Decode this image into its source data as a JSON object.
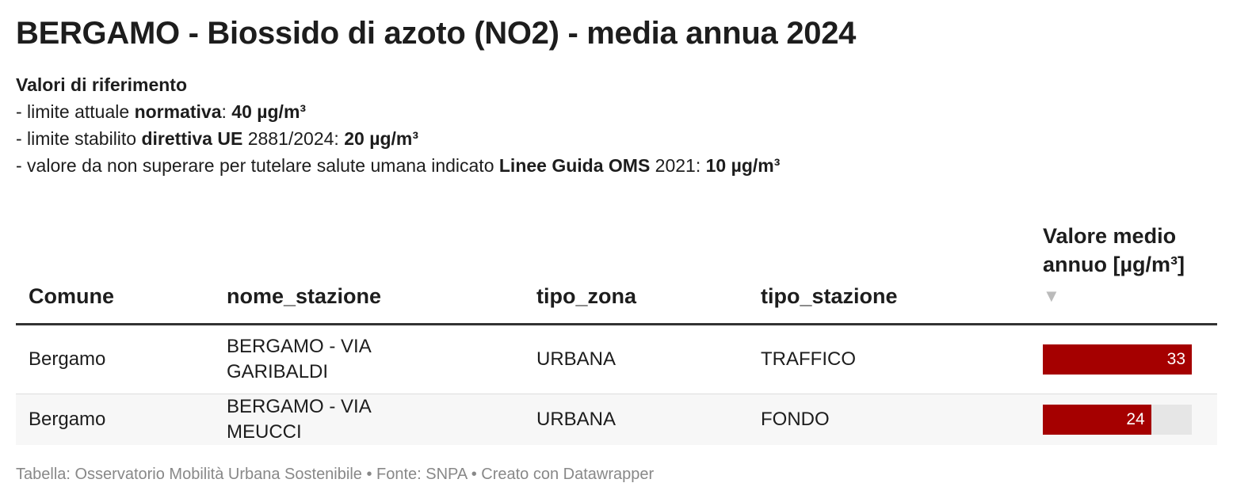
{
  "header": {
    "title": "BERGAMO - Biossido di azoto (NO2) - media annua 2024",
    "intro": [
      [
        {
          "text": "Valori di riferimento",
          "bold": true
        }
      ],
      [
        {
          "text": "- limite attuale ",
          "bold": false
        },
        {
          "text": "normativa",
          "bold": true
        },
        {
          "text": ": ",
          "bold": false
        },
        {
          "text": "40 µg/m³",
          "bold": true
        }
      ],
      [
        {
          "text": "- limite stabilito ",
          "bold": false
        },
        {
          "text": "direttiva UE",
          "bold": true
        },
        {
          "text": " 2881/2024: ",
          "bold": false
        },
        {
          "text": "20 µg/m³",
          "bold": true
        }
      ],
      [
        {
          "text": "- valore da non superare per tutelare salute umana indicato ",
          "bold": false
        },
        {
          "text": "Linee Guida OMS",
          "bold": true
        },
        {
          "text": " 2021: ",
          "bold": false
        },
        {
          "text": "10 µg/m³",
          "bold": true
        }
      ]
    ]
  },
  "table": {
    "columns": [
      "Comune",
      "nome_stazione",
      "tipo_zona",
      "tipo_stazione",
      "Valore medio annuo [µg/m³]"
    ],
    "rows": [
      [
        "Bergamo",
        "BERGAMO - VIA GARIBALDI",
        "URBANA",
        "TRAFFICO",
        33
      ],
      [
        "Bergamo",
        "BERGAMO - VIA MEUCCI",
        "URBANA",
        "FONDO",
        24
      ]
    ],
    "bar_color": "#a50000",
    "bar_track_color": "#e6e6e6"
  },
  "footer": "Tabella: Osservatorio Mobilità Urbana Sostenibile • Fonte: SNPA • Creato con Datawrapper"
}
